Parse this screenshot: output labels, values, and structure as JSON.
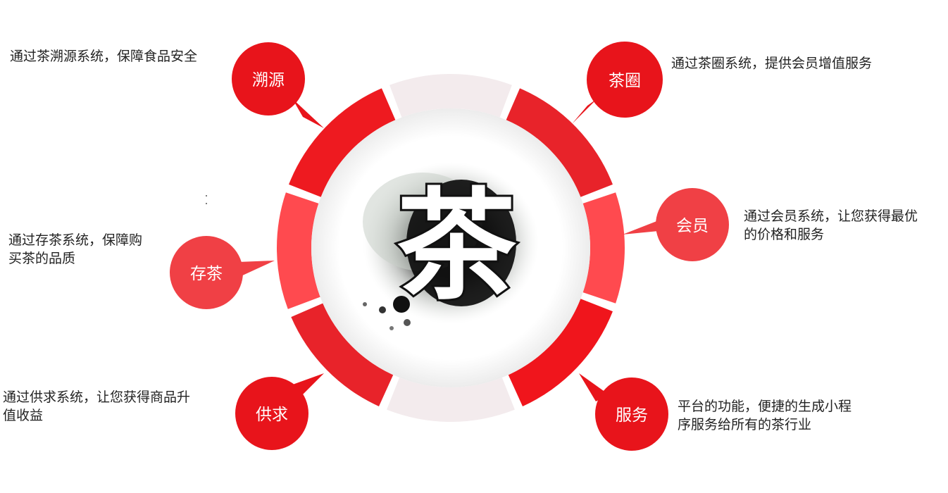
{
  "center": {
    "character": "茶"
  },
  "colors": {
    "ring_red": "#e8232a",
    "ring_pink": "#ff4a4f",
    "ring_pale": "#f3ebed",
    "bubble_red": "#e8141b",
    "bubble_pink": "#f04045",
    "text": "#222222"
  },
  "features": [
    {
      "id": "trace",
      "label": "溯源",
      "desc": [
        "通过茶溯源系统，保障食品安全"
      ]
    },
    {
      "id": "circle",
      "label": "茶圈",
      "desc": [
        "通过茶圈系统，提供会员增值服务"
      ]
    },
    {
      "id": "member",
      "label": "会员",
      "desc": [
        "通过会员系统，让您获得最优",
        "的价格和服务"
      ]
    },
    {
      "id": "store",
      "label": "存茶",
      "desc": [
        "通过存茶系统，保障购",
        "买茶的品质"
      ]
    },
    {
      "id": "supply",
      "label": "供求",
      "desc": [
        "通过供求系统，让您获得商品升",
        "值收益"
      ]
    },
    {
      "id": "service",
      "label": "服务",
      "desc": [
        "平台的功能，便捷的生成小程",
        "序服务给所有的茶行业"
      ]
    }
  ]
}
